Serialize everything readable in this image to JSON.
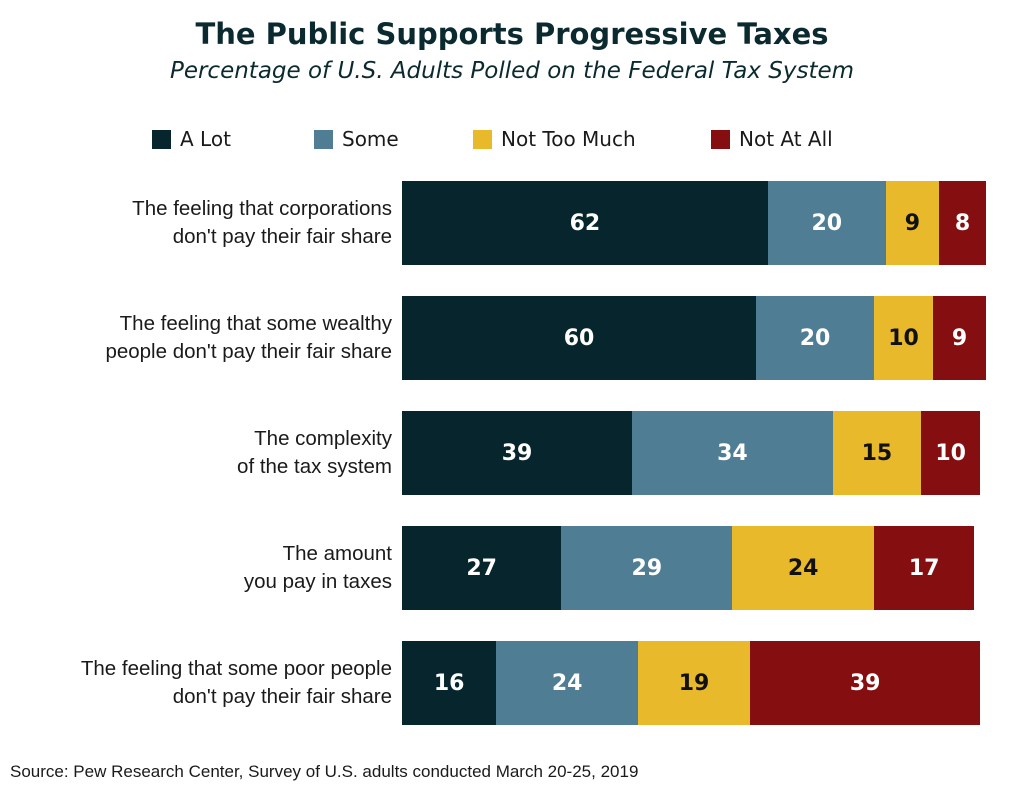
{
  "chart_data": {
    "type": "bar",
    "orientation": "horizontal",
    "stacked": true,
    "title": "The Public Supports Progressive Taxes",
    "subtitle": "Percentage of U.S. Adults Polled on the Federal Tax System",
    "legend_position": "top",
    "categories": [
      [
        "The feeling that corporations",
        "don't pay their fair share"
      ],
      [
        "The feeling that some wealthy",
        "people don't pay their fair share"
      ],
      [
        "The complexity",
        "of the tax system"
      ],
      [
        "The amount",
        "you pay in taxes"
      ],
      [
        "The feeling that some poor people",
        "don't pay their fair share"
      ]
    ],
    "series": [
      {
        "name": "A Lot",
        "color": "#06252d",
        "label_color": "#ffffff",
        "values": [
          62,
          60,
          39,
          27,
          16
        ]
      },
      {
        "name": "Some",
        "color": "#4f7d94",
        "label_color": "#ffffff",
        "values": [
          20,
          20,
          34,
          29,
          24
        ]
      },
      {
        "name": "Not Too Much",
        "color": "#e8b92a",
        "label_color": "#111111",
        "values": [
          9,
          10,
          15,
          24,
          19
        ]
      },
      {
        "name": "Not At All",
        "color": "#850f10",
        "label_color": "#ffffff",
        "values": [
          8,
          9,
          10,
          17,
          39
        ]
      }
    ],
    "source": "Source: Pew Research Center, Survey of U.S. adults conducted March 20-25, 2019"
  }
}
